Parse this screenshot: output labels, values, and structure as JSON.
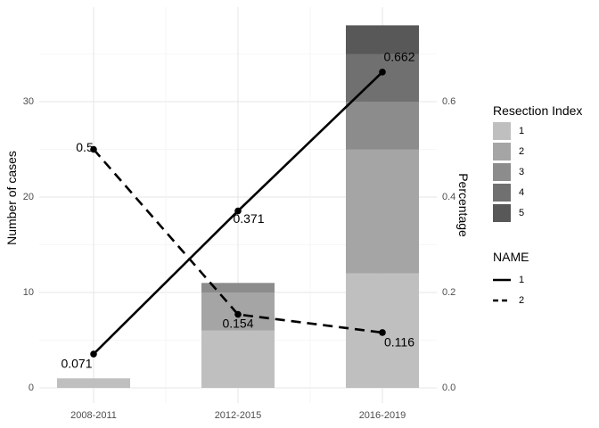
{
  "chart_data": {
    "type": "bar",
    "categories": [
      "2008-2011",
      "2012-2015",
      "2016-2019"
    ],
    "bar_series": [
      {
        "name": "1",
        "color": "#bfbfbf",
        "values": [
          1,
          6,
          12
        ]
      },
      {
        "name": "2",
        "color": "#a5a5a5",
        "values": [
          0,
          4,
          13
        ]
      },
      {
        "name": "3",
        "color": "#8c8c8c",
        "values": [
          0,
          1,
          5
        ]
      },
      {
        "name": "4",
        "color": "#707070",
        "values": [
          0,
          0,
          5
        ]
      },
      {
        "name": "5",
        "color": "#585858",
        "values": [
          0,
          0,
          3
        ]
      }
    ],
    "line_series": [
      {
        "name": "1",
        "dash": "solid",
        "values": [
          0.071,
          0.371,
          0.662
        ],
        "labels": [
          "0.071",
          "0.371",
          "0.662"
        ]
      },
      {
        "name": "2",
        "dash": "dashed",
        "values": [
          0.5,
          0.154,
          0.116
        ],
        "labels": [
          "0.5",
          "0.154",
          "0.116"
        ]
      }
    ],
    "ylabel": "Number of cases",
    "y2label": "Percentage",
    "ylim": [
      0,
      38
    ],
    "yticks": [
      0,
      10,
      20,
      30
    ],
    "y2ticks": [
      "0.0",
      "0.2",
      "0.4",
      "0.6"
    ],
    "y2_scale": 50,
    "legend_fill_title": "Resection Index",
    "legend_line_title": "NAME",
    "legend_placement": "right",
    "grid": true
  }
}
